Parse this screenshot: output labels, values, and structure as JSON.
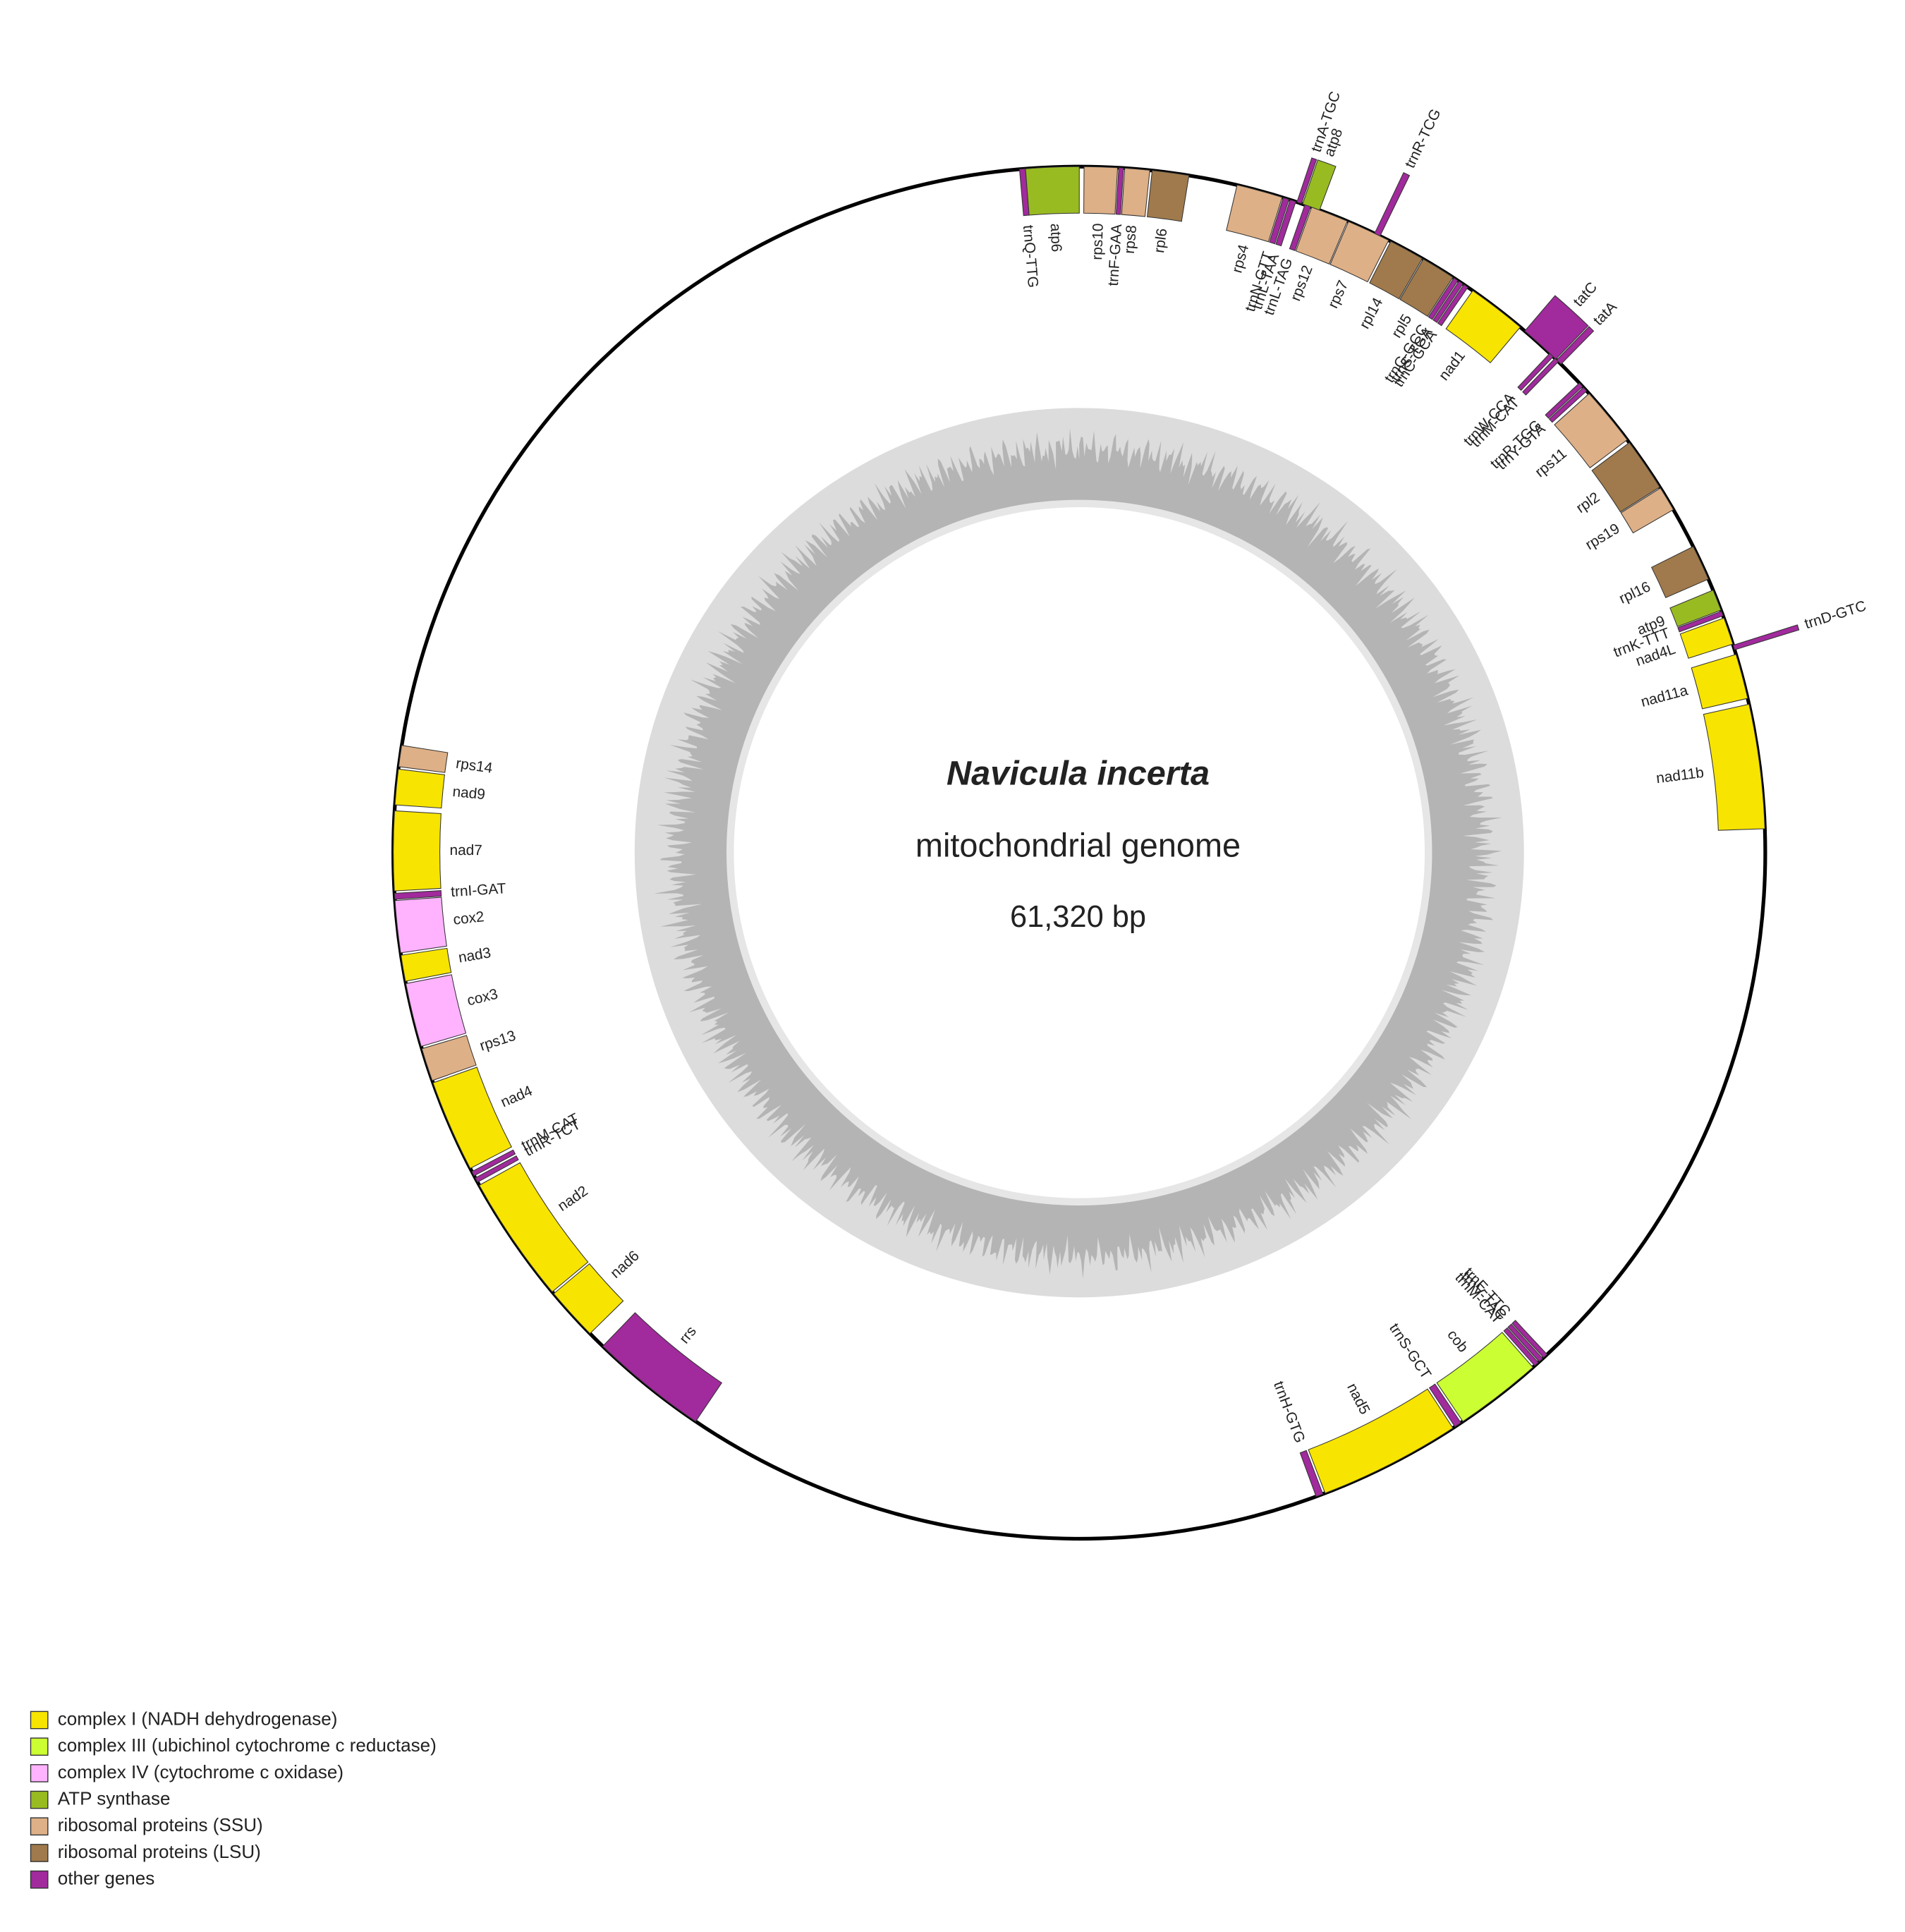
{
  "title": "Navicula incerta",
  "subtitle": "mitochondrial genome",
  "size": "61,320 bp",
  "legend": [
    {
      "label": "complex I (NADH dehydrogenase)",
      "color": "#f7e400"
    },
    {
      "label": "complex III (ubichinol cytochrome c reductase)",
      "color": "#ccff33"
    },
    {
      "label": "complex IV (cytochrome c oxidase)",
      "color": "#ffb3ff"
    },
    {
      "label": "ATP synthase",
      "color": "#99bb22"
    },
    {
      "label": "ribosomal proteins (SSU)",
      "color": "#deb087"
    },
    {
      "label": "ribosomal proteins (LSU)",
      "color": "#a07a4c"
    },
    {
      "label": "other genes",
      "color": "#a12a9c"
    }
  ],
  "genes": [
    {
      "label": "trnQ-TTG",
      "color": "#a12a9c"
    },
    {
      "label": "atp6",
      "color": "#99bb22"
    },
    {
      "label": "rps10",
      "color": "#deb087"
    },
    {
      "label": "trnF-GAA",
      "color": "#a12a9c"
    },
    {
      "label": "rps8",
      "color": "#deb087"
    },
    {
      "label": "rpl6",
      "color": "#a07a4c"
    },
    {
      "label": "rps4",
      "color": "#deb087"
    },
    {
      "label": "trnN-GTT",
      "color": "#a12a9c"
    },
    {
      "label": "trnL-TAA",
      "color": "#a12a9c"
    },
    {
      "label": "trnA-TGC",
      "color": "#a12a9c"
    },
    {
      "label": "atp8",
      "color": "#99bb22"
    },
    {
      "label": "trnL-TAG",
      "color": "#a12a9c"
    },
    {
      "label": "rps12",
      "color": "#deb087"
    },
    {
      "label": "rps7",
      "color": "#deb087"
    },
    {
      "label": "trnR-TCG",
      "color": "#a12a9c"
    },
    {
      "label": "rpl14",
      "color": "#a07a4c"
    },
    {
      "label": "rpl5",
      "color": "#a07a4c"
    },
    {
      "label": "trnG-GCC",
      "color": "#a12a9c"
    },
    {
      "label": "trnS-TGA",
      "color": "#a12a9c"
    },
    {
      "label": "trnC-GCA",
      "color": "#a12a9c"
    },
    {
      "label": "nad1",
      "color": "#f7e400"
    },
    {
      "label": "tatC",
      "color": "#a12a9c"
    },
    {
      "label": "tatA",
      "color": "#a12a9c"
    },
    {
      "label": "trnW-CCA",
      "color": "#a12a9c"
    },
    {
      "label": "trnM-CAT",
      "color": "#a12a9c"
    },
    {
      "label": "trnP-TGG",
      "color": "#a12a9c"
    },
    {
      "label": "trnY-GTA",
      "color": "#a12a9c"
    },
    {
      "label": "rps11",
      "color": "#deb087"
    },
    {
      "label": "rpl2",
      "color": "#a07a4c"
    },
    {
      "label": "rps19",
      "color": "#deb087"
    },
    {
      "label": "rpl16",
      "color": "#a07a4c"
    },
    {
      "label": "atp9",
      "color": "#99bb22"
    },
    {
      "label": "trnK-TTT",
      "color": "#a12a9c"
    },
    {
      "label": "nad4L",
      "color": "#f7e400"
    },
    {
      "label": "trnD-GTC",
      "color": "#a12a9c"
    },
    {
      "label": "nad11a",
      "color": "#f7e400"
    },
    {
      "label": "nad11b",
      "color": "#f7e400"
    },
    {
      "label": "trnE-TTC",
      "color": "#a12a9c"
    },
    {
      "label": "trnV-TAC",
      "color": "#a12a9c"
    },
    {
      "label": "trnM-CAT",
      "color": "#a12a9c"
    },
    {
      "label": "cob",
      "color": "#ccff33"
    },
    {
      "label": "trnS-GCT",
      "color": "#a12a9c"
    },
    {
      "label": "nad5",
      "color": "#f7e400"
    },
    {
      "label": "trnH-GTG",
      "color": "#a12a9c"
    },
    {
      "label": "rrs",
      "color": "#a12a9c"
    },
    {
      "label": "nad6",
      "color": "#f7e400"
    },
    {
      "label": "nad2",
      "color": "#f7e400"
    },
    {
      "label": "trnR-TCT",
      "color": "#a12a9c"
    },
    {
      "label": "trnM-CAT",
      "color": "#a12a9c"
    },
    {
      "label": "nad4",
      "color": "#f7e400"
    },
    {
      "label": "rps13",
      "color": "#deb087"
    },
    {
      "label": "cox3",
      "color": "#ffb3ff"
    },
    {
      "label": "nad3",
      "color": "#f7e400"
    },
    {
      "label": "cox2",
      "color": "#ffb3ff"
    },
    {
      "label": "trnI-GAT",
      "color": "#a12a9c"
    },
    {
      "label": "nad7",
      "color": "#f7e400"
    },
    {
      "label": "nad9",
      "color": "#f7e400"
    },
    {
      "label": "rps14",
      "color": "#deb087"
    }
  ]
}
